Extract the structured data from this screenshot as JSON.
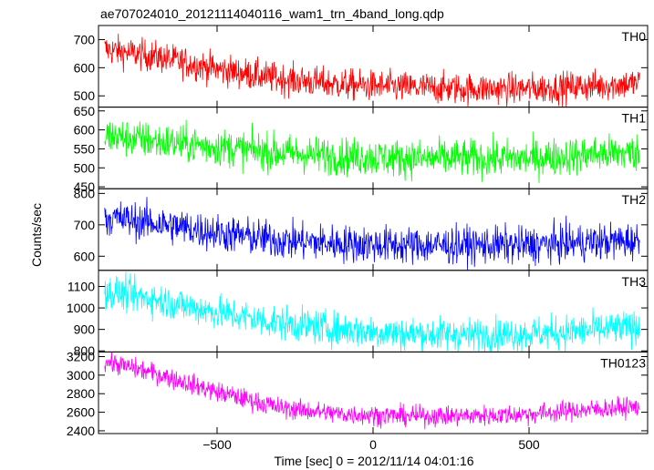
{
  "chart_data": {
    "type": "line",
    "title": "ae707024010_20121114040116_wam1_trn_4band_long.qdp",
    "xlabel": "Time [sec] 0 = 2012/11/14 04:01:16",
    "ylabel": "Counts/sec",
    "xlim": [
      -880,
      880
    ],
    "xticks": [
      -500,
      0,
      500
    ],
    "xtick_labels": [
      "−500",
      "0",
      "500"
    ],
    "x_start": -860,
    "x_end": 855,
    "panels": [
      {
        "name": "TH0",
        "color": "#ff0000",
        "ylim": [
          460,
          750
        ],
        "yticks": [
          500,
          600,
          700
        ],
        "ytick_labels": [
          "500",
          "600",
          "700"
        ],
        "trend": {
          "x": [
            -860,
            -700,
            -500,
            -300,
            -100,
            100,
            300,
            500,
            700,
            855
          ],
          "y": [
            665,
            640,
            595,
            560,
            540,
            530,
            525,
            525,
            535,
            545
          ]
        },
        "noise": 28
      },
      {
        "name": "TH1",
        "color": "#00ff00",
        "ylim": [
          445,
          660
        ],
        "yticks": [
          450,
          500,
          550,
          600,
          650
        ],
        "ytick_labels": [
          "450",
          "500",
          "550",
          "600",
          "650"
        ],
        "trend": {
          "x": [
            -860,
            -700,
            -500,
            -300,
            -100,
            100,
            300,
            500,
            700,
            855
          ],
          "y": [
            585,
            570,
            555,
            540,
            530,
            525,
            525,
            525,
            535,
            540
          ]
        },
        "noise": 25
      },
      {
        "name": "TH2",
        "color": "#0000ff",
        "ylim": [
          555,
          815
        ],
        "yticks": [
          600,
          700,
          800
        ],
        "ytick_labels": [
          "600",
          "700",
          "800"
        ],
        "trend": {
          "x": [
            -860,
            -700,
            -500,
            -300,
            -100,
            100,
            300,
            500,
            700,
            855
          ],
          "y": [
            725,
            705,
            675,
            650,
            640,
            635,
            635,
            635,
            645,
            650
          ]
        },
        "noise": 30
      },
      {
        "name": "TH3",
        "color": "#00ffff",
        "ylim": [
          795,
          1175
        ],
        "yticks": [
          800,
          900,
          1000,
          1100
        ],
        "ytick_labels": [
          "800",
          "900",
          "1000",
          "1100"
        ],
        "trend": {
          "x": [
            -860,
            -700,
            -500,
            -300,
            -100,
            100,
            300,
            500,
            700,
            855
          ],
          "y": [
            1080,
            1040,
            980,
            930,
            900,
            880,
            875,
            880,
            895,
            910
          ]
        },
        "noise": 40
      },
      {
        "name": "TH0123",
        "color": "#ff00ff",
        "ylim": [
          2370,
          3250
        ],
        "yticks": [
          2400,
          2600,
          2800,
          3000,
          3200
        ],
        "ytick_labels": [
          "2400",
          "2600",
          "2800",
          "3000",
          "3200"
        ],
        "trend": {
          "x": [
            -860,
            -700,
            -500,
            -300,
            -100,
            100,
            300,
            500,
            700,
            855
          ],
          "y": [
            3150,
            3020,
            2820,
            2650,
            2580,
            2560,
            2560,
            2580,
            2630,
            2660
          ]
        },
        "noise": 55
      }
    ],
    "grid": false,
    "legend": "none"
  }
}
